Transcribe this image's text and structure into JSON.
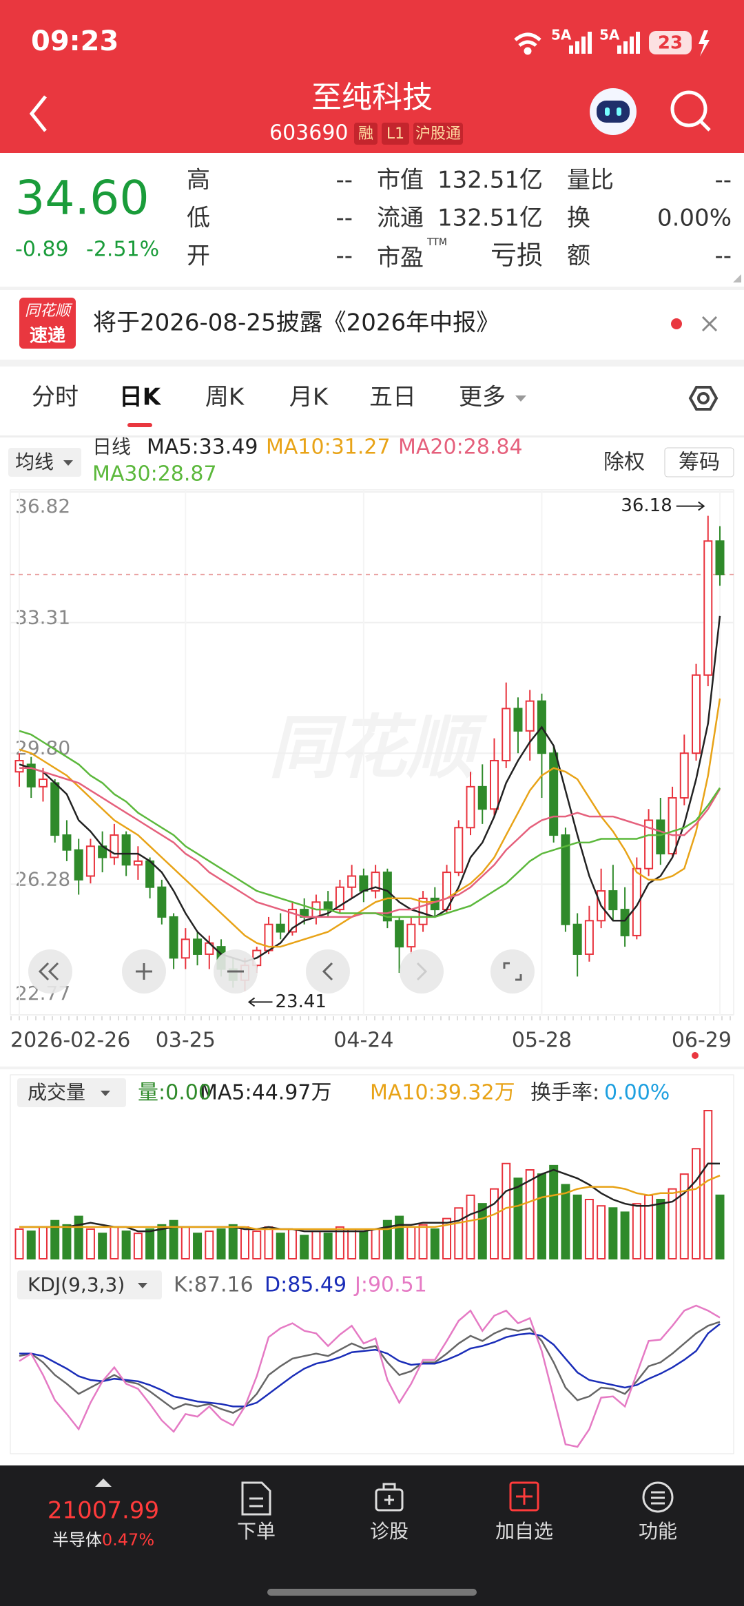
{
  "status_bar": {
    "time": "09:23",
    "network_1": "5A",
    "network_2": "5A",
    "battery": "23"
  },
  "header": {
    "title": "至纯科技",
    "code": "603690",
    "tags": [
      "融",
      "L1",
      "沪股通"
    ]
  },
  "quote": {
    "price": "34.60",
    "change": "-0.89",
    "change_pct": "-2.51%",
    "fields": [
      {
        "label": "高",
        "value": "--"
      },
      {
        "label": "低",
        "value": "--"
      },
      {
        "label": "开",
        "value": "--"
      },
      {
        "label": "市值",
        "value": "132.51亿"
      },
      {
        "label": "流通",
        "value": "132.51亿"
      },
      {
        "label": "市盈",
        "sup": "TTM",
        "value": "亏损"
      },
      {
        "label": "量比",
        "value": "--"
      },
      {
        "label": "换",
        "value": "0.00%"
      },
      {
        "label": "额",
        "value": "--"
      }
    ]
  },
  "news": {
    "logo_top": "同花顺",
    "logo_bottom": "速递",
    "text": "将于2026-08-25披露《2026年中报》"
  },
  "tabs": [
    "分时",
    "日K",
    "周K",
    "月K",
    "五日",
    "更多"
  ],
  "chart_toolbar": {
    "ma_menu": "均线",
    "adjust": "除权",
    "chips": "筹码",
    "watermark": "同花顺"
  },
  "chart_data": [
    {
      "type": "candlestick",
      "label": "日线",
      "up_color": "#e8323c",
      "down_color": "#2f8a2a",
      "categories": [
        "2026-02-26",
        null,
        null,
        null,
        null,
        null,
        null,
        null,
        null,
        null,
        null,
        null,
        null,
        null,
        "03-25",
        null,
        null,
        null,
        null,
        null,
        null,
        null,
        null,
        null,
        null,
        null,
        null,
        null,
        null,
        "04-24",
        null,
        null,
        null,
        null,
        null,
        null,
        null,
        null,
        null,
        null,
        null,
        null,
        null,
        null,
        "05-28",
        null,
        null,
        null,
        null,
        null,
        null,
        null,
        null,
        null,
        null,
        null,
        null,
        null,
        null,
        "06-29"
      ],
      "open": [
        29.3,
        29.5,
        28.9,
        29.0,
        27.6,
        27.2,
        26.5,
        27.3,
        27.0,
        27.6,
        26.8,
        26.9,
        26.2,
        25.4,
        24.3,
        24.8,
        24.4,
        24.6,
        24.0,
        23.7,
        24.1,
        24.5,
        25.2,
        25.0,
        25.6,
        25.4,
        25.8,
        25.6,
        26.2,
        26.5,
        26.1,
        26.6,
        25.3,
        24.6,
        25.2,
        25.9,
        25.6,
        26.6,
        27.8,
        28.9,
        28.3,
        29.6,
        31.0,
        30.4,
        31.2,
        29.8,
        27.6,
        25.2,
        24.4,
        25.3,
        26.1,
        25.6,
        24.9,
        26.7,
        28.0,
        27.1,
        28.6,
        29.8,
        31.9,
        35.5
      ],
      "high": [
        29.8,
        29.7,
        29.4,
        29.1,
        28.0,
        27.5,
        27.5,
        27.7,
        27.9,
        27.7,
        27.3,
        27.0,
        26.4,
        25.5,
        25.1,
        25.0,
        24.9,
        24.8,
        24.3,
        24.3,
        24.6,
        25.4,
        25.5,
        25.8,
        25.9,
        26.0,
        26.1,
        26.4,
        26.8,
        26.7,
        26.8,
        26.7,
        25.4,
        25.4,
        26.1,
        26.2,
        26.8,
        28.0,
        29.3,
        29.5,
        30.2,
        31.7,
        31.3,
        31.5,
        31.4,
        30.0,
        27.8,
        25.5,
        25.7,
        26.7,
        26.8,
        26.2,
        27.0,
        28.3,
        28.6,
        28.9,
        30.3,
        32.2,
        36.18,
        35.9
      ],
      "low": [
        28.9,
        28.6,
        28.5,
        27.4,
        26.9,
        26.0,
        26.3,
        26.6,
        26.8,
        26.5,
        26.4,
        25.9,
        25.2,
        24.0,
        24.0,
        24.1,
        24.0,
        23.8,
        23.5,
        23.41,
        23.9,
        24.4,
        24.8,
        24.9,
        25.2,
        25.2,
        25.4,
        25.5,
        25.9,
        25.8,
        25.9,
        25.1,
        23.9,
        24.4,
        25.0,
        25.4,
        25.5,
        26.5,
        27.6,
        27.9,
        28.1,
        29.4,
        29.8,
        29.6,
        28.6,
        27.4,
        25.0,
        23.8,
        24.2,
        25.1,
        25.3,
        24.6,
        24.8,
        26.5,
        26.8,
        27.0,
        28.4,
        29.6,
        31.6,
        34.3
      ],
      "close": [
        29.6,
        28.9,
        29.1,
        27.6,
        27.2,
        26.4,
        27.3,
        27.0,
        27.6,
        26.8,
        26.9,
        26.2,
        25.4,
        24.3,
        24.8,
        24.4,
        24.7,
        24.0,
        23.7,
        24.1,
        24.5,
        25.2,
        25.0,
        25.6,
        25.4,
        25.8,
        25.6,
        26.2,
        26.5,
        26.1,
        26.6,
        25.3,
        24.6,
        25.2,
        25.9,
        25.6,
        26.6,
        27.8,
        28.9,
        28.3,
        29.6,
        31.0,
        30.4,
        31.2,
        29.8,
        27.6,
        25.2,
        24.4,
        25.3,
        26.1,
        25.6,
        24.9,
        26.7,
        28.0,
        27.1,
        28.6,
        29.8,
        31.9,
        35.5,
        34.6
      ],
      "series": [
        {
          "name": "MA5:33.49",
          "color": "#222222",
          "values": [
            29.5,
            29.4,
            29.3,
            29.0,
            28.7,
            28.0,
            27.7,
            27.3,
            27.1,
            27.1,
            27.1,
            26.9,
            26.6,
            26.1,
            25.5,
            25.0,
            24.7,
            24.4,
            24.3,
            24.2,
            24.3,
            24.5,
            24.7,
            25.1,
            25.3,
            25.4,
            25.5,
            25.7,
            25.9,
            26.1,
            26.2,
            26.1,
            25.8,
            25.6,
            25.5,
            25.4,
            25.6,
            26.2,
            27.0,
            27.4,
            28.1,
            29.0,
            29.6,
            30.1,
            30.5,
            30.0,
            28.8,
            27.6,
            26.5,
            25.7,
            25.3,
            25.3,
            25.7,
            26.3,
            26.5,
            27.0,
            27.9,
            29.1,
            30.6,
            33.49
          ]
        },
        {
          "name": "MA10:31.27",
          "color": "#e8a317",
          "values": [
            29.9,
            29.8,
            29.6,
            29.4,
            29.2,
            28.9,
            28.6,
            28.3,
            28.0,
            27.8,
            27.6,
            27.3,
            27.0,
            26.7,
            26.4,
            26.1,
            25.8,
            25.5,
            25.2,
            24.9,
            24.7,
            24.6,
            24.6,
            24.7,
            24.8,
            24.9,
            25.0,
            25.2,
            25.4,
            25.6,
            25.8,
            25.9,
            25.9,
            25.9,
            25.8,
            25.8,
            25.9,
            26.1,
            26.3,
            26.6,
            27.0,
            27.6,
            28.2,
            28.8,
            29.2,
            29.4,
            29.3,
            29.1,
            28.6,
            28.1,
            27.7,
            27.2,
            26.6,
            26.4,
            26.4,
            26.5,
            26.7,
            27.7,
            29.2,
            31.27
          ]
        },
        {
          "name": "MA20:28.84",
          "color": "#e5607c",
          "values": [
            29.4,
            29.4,
            29.3,
            29.2,
            29.1,
            29.0,
            28.8,
            28.6,
            28.4,
            28.2,
            28.0,
            27.8,
            27.6,
            27.4,
            27.1,
            26.9,
            26.6,
            26.4,
            26.2,
            26.0,
            25.8,
            25.7,
            25.6,
            25.5,
            25.4,
            25.4,
            25.4,
            25.4,
            25.4,
            25.5,
            25.5,
            25.5,
            25.6,
            25.6,
            25.7,
            25.8,
            25.9,
            26.0,
            26.2,
            26.5,
            26.8,
            27.2,
            27.5,
            27.8,
            28.0,
            28.1,
            28.1,
            28.2,
            28.1,
            28.1,
            28.1,
            28.0,
            27.9,
            27.8,
            27.7,
            27.6,
            27.6,
            27.9,
            28.3,
            28.84
          ]
        },
        {
          "name": "MA30:28.87",
          "color": "#5cb83c",
          "values": [
            30.4,
            30.3,
            30.1,
            29.9,
            29.7,
            29.5,
            29.2,
            29.0,
            28.7,
            28.5,
            28.2,
            28.0,
            27.8,
            27.6,
            27.3,
            27.1,
            26.9,
            26.7,
            26.5,
            26.3,
            26.1,
            26.0,
            25.9,
            25.8,
            25.7,
            25.6,
            25.6,
            25.5,
            25.5,
            25.5,
            25.5,
            25.4,
            25.4,
            25.4,
            25.4,
            25.4,
            25.5,
            25.6,
            25.7,
            25.9,
            26.1,
            26.3,
            26.6,
            26.9,
            27.1,
            27.2,
            27.3,
            27.4,
            27.4,
            27.5,
            27.5,
            27.5,
            27.5,
            27.6,
            27.6,
            27.7,
            27.8,
            28.0,
            28.4,
            28.87
          ]
        }
      ],
      "ylim": [
        22.77,
        36.82
      ],
      "yticks": [
        36.82,
        33.31,
        {
          "value": 29.8,
          "label": "29.80"
        },
        26.28,
        22.77
      ],
      "max_label": 36.18,
      "min_label": 23.41,
      "grid": true
    },
    {
      "type": "bar",
      "menu": "成交量",
      "volume_label": "量:0.00",
      "turnover_label": "换手率:",
      "turnover": "0.00%",
      "values": [
        14,
        13,
        15,
        18,
        16,
        20,
        14,
        12,
        15,
        13,
        12,
        14,
        16,
        18,
        15,
        12,
        13,
        14,
        16,
        15,
        13,
        15,
        12,
        14,
        11,
        13,
        12,
        15,
        14,
        13,
        14,
        18,
        20,
        15,
        16,
        14,
        19,
        24,
        30,
        26,
        33,
        45,
        38,
        42,
        40,
        44,
        35,
        30,
        28,
        25,
        24,
        22,
        26,
        30,
        28,
        33,
        40,
        52,
        70,
        30
      ],
      "series": [
        {
          "name": "MA5:44.97万",
          "color": "#222222",
          "values": [
            15,
            15,
            15,
            15,
            15,
            16,
            17,
            16,
            15,
            15,
            13,
            13,
            14,
            15,
            15,
            15,
            15,
            15,
            15,
            14,
            14,
            15,
            14,
            14,
            13,
            13,
            13,
            13,
            13,
            13,
            14,
            15,
            16,
            16,
            17,
            17,
            17,
            18,
            21,
            23,
            26,
            32,
            34,
            37,
            40,
            42,
            40,
            38,
            35,
            31,
            28,
            26,
            25,
            25,
            26,
            27,
            31,
            37,
            45,
            44.97
          ]
        },
        {
          "name": "MA10:39.32万",
          "color": "#e8a317",
          "values": [
            15,
            15,
            15,
            15,
            15,
            15,
            15,
            15,
            15,
            15,
            15,
            15,
            15,
            15,
            15,
            15,
            15,
            15,
            15,
            15,
            14,
            14,
            14,
            14,
            14,
            14,
            14,
            14,
            14,
            14,
            14,
            14,
            15,
            15,
            15,
            15,
            16,
            17,
            18,
            19,
            21,
            24,
            25,
            27,
            29,
            30,
            31,
            33,
            34,
            34,
            34,
            33,
            31,
            30,
            31,
            31,
            32,
            33,
            37,
            39.32
          ]
        }
      ]
    },
    {
      "type": "line",
      "menu": "KDJ(9,3,3)",
      "series": [
        {
          "name": "K:87.16",
          "color": "#666666",
          "values": [
            60,
            62,
            55,
            45,
            38,
            30,
            35,
            40,
            45,
            40,
            38,
            32,
            25,
            18,
            22,
            20,
            22,
            18,
            15,
            20,
            30,
            45,
            52,
            58,
            60,
            62,
            60,
            65,
            70,
            66,
            68,
            55,
            45,
            48,
            55,
            55,
            62,
            70,
            76,
            72,
            78,
            82,
            80,
            82,
            72,
            55,
            35,
            25,
            28,
            35,
            34,
            30,
            40,
            52,
            55,
            62,
            70,
            78,
            84,
            87.16
          ]
        },
        {
          "name": "D:85.49",
          "color": "#1a2db8",
          "values": [
            62,
            62,
            60,
            55,
            50,
            44,
            41,
            40,
            42,
            41,
            40,
            37,
            33,
            28,
            26,
            24,
            23,
            22,
            20,
            20,
            23,
            30,
            37,
            44,
            50,
            54,
            56,
            59,
            63,
            64,
            65,
            62,
            56,
            53,
            54,
            54,
            57,
            61,
            66,
            68,
            71,
            75,
            77,
            78,
            76,
            69,
            58,
            47,
            41,
            39,
            37,
            35,
            37,
            42,
            46,
            51,
            57,
            64,
            78,
            85.49
          ]
        },
        {
          "name": "J:90.51",
          "color": "#e57ac4",
          "values": [
            56,
            62,
            45,
            25,
            14,
            2,
            23,
            40,
            51,
            38,
            34,
            22,
            9,
            0,
            14,
            12,
            20,
            10,
            5,
            20,
            44,
            75,
            82,
            86,
            80,
            78,
            68,
            77,
            84,
            70,
            74,
            41,
            23,
            38,
            57,
            57,
            72,
            88,
            96,
            80,
            92,
            96,
            86,
            90,
            64,
            27,
            -10,
            -12,
            2,
            27,
            28,
            20,
            46,
            72,
            73,
            84,
            96,
            100,
            96,
            90.51
          ]
        }
      ]
    }
  ],
  "bottom_bar": {
    "index_value": "21007.99",
    "index_name": "半导体",
    "index_change": "0.47%",
    "nav": [
      "下单",
      "诊股",
      "加自选",
      "功能"
    ]
  }
}
